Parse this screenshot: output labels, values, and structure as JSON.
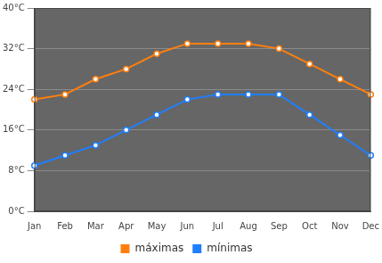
{
  "chart_data": {
    "type": "line",
    "categories": [
      "Jan",
      "Feb",
      "Mar",
      "Apr",
      "May",
      "Jun",
      "Jul",
      "Aug",
      "Sep",
      "Oct",
      "Nov",
      "Dec"
    ],
    "series": [
      {
        "name": "máximas",
        "color": "#ff7f0e",
        "values": [
          22,
          23,
          26,
          28,
          31,
          33,
          33,
          33,
          32,
          29,
          26,
          23
        ]
      },
      {
        "name": "mínimas",
        "color": "#1f7fff",
        "values": [
          9,
          11,
          13,
          16,
          19,
          22,
          23,
          23,
          23,
          19,
          15,
          11
        ]
      }
    ],
    "ylim": [
      0,
      40
    ],
    "yticks": [
      {
        "value": 0,
        "label": "0°C"
      },
      {
        "value": 8,
        "label": "8°C"
      },
      {
        "value": 16,
        "label": "16°C"
      },
      {
        "value": 24,
        "label": "24°C"
      },
      {
        "value": 32,
        "label": "32°C"
      },
      {
        "value": 40,
        "label": "40°C"
      }
    ],
    "grid": true,
    "legend": "bottom",
    "marker": "circle"
  }
}
